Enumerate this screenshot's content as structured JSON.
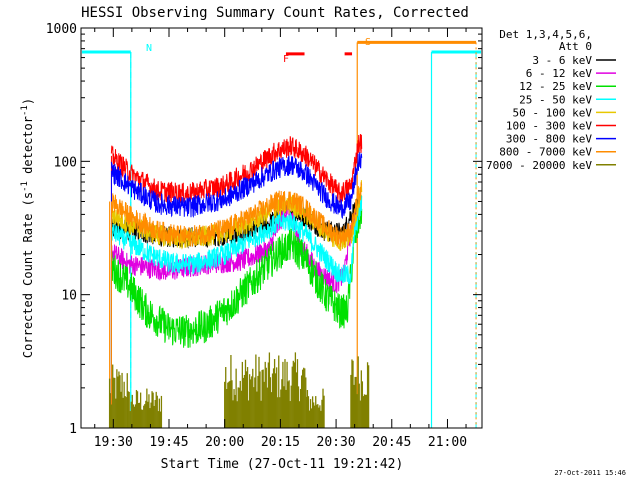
{
  "chart_data": {
    "type": "line",
    "title": "HESSI Observing Summary Count Rates, Corrected",
    "xlabel": "Start Time (27-Oct-11 19:21:42)",
    "ylabel": "Corrected Count Rate (s",
    "ylabel_sup1": "-1",
    "ylabel_mid": " detector",
    "ylabel_sup2": "-1",
    "ylabel_end": ")",
    "y_scale": "log",
    "ylim": [
      1,
      1000
    ],
    "xlim_minutes": [
      -8.7,
      99.3
    ],
    "x_ticks": [
      {
        "label": "19:30",
        "m": 0
      },
      {
        "label": "19:45",
        "m": 15
      },
      {
        "label": "20:00",
        "m": 30
      },
      {
        "label": "20:15",
        "m": 45
      },
      {
        "label": "20:30",
        "m": 60
      },
      {
        "label": "20:45",
        "m": 75
      },
      {
        "label": "21:00",
        "m": 90
      }
    ],
    "y_ticks": [
      {
        "label": "1",
        "v": 1
      },
      {
        "label": "10",
        "v": 10
      },
      {
        "label": "100",
        "v": 100
      },
      {
        "label": "1000",
        "v": 1000
      }
    ],
    "legend": {
      "header_line1": "Det 1,3,4,5,6,",
      "header_line2": "Att 0",
      "entries": [
        {
          "label": "3 - 6 keV",
          "color": "#000000"
        },
        {
          "label": "6 - 12 keV",
          "color": "#e000e0"
        },
        {
          "label": "12 - 25 keV",
          "color": "#00e000"
        },
        {
          "label": "25 - 50 keV",
          "color": "#00ffff"
        },
        {
          "label": "50 - 100 keV",
          "color": "#e8c800"
        },
        {
          "label": "100 - 300 keV",
          "color": "#ff0000"
        },
        {
          "label": "300 - 800 keV",
          "color": "#0000ff"
        },
        {
          "label": "800 - 7000 keV",
          "color": "#ff8c00"
        },
        {
          "label": "7000 - 20000 keV",
          "color": "#808000"
        }
      ]
    },
    "annotations": {
      "night_label": "N",
      "saa_label": "S",
      "flare_label": "F",
      "night_color": "#00ffff",
      "saa_color": "#ff8c00",
      "flare_color": "#ff0000"
    },
    "series": [
      {
        "name": "3 - 6 keV",
        "color": "#000000",
        "points": [
          [
            -0.5,
            32
          ],
          [
            5,
            30
          ],
          [
            15,
            27
          ],
          [
            25,
            27
          ],
          [
            35,
            29
          ],
          [
            42,
            34
          ],
          [
            47,
            43
          ],
          [
            52,
            38
          ],
          [
            57,
            30
          ],
          [
            62,
            29
          ],
          [
            64,
            40
          ],
          [
            66,
            45
          ]
        ]
      },
      {
        "name": "6 - 12 keV",
        "color": "#e000e0",
        "points": [
          [
            -0.5,
            21
          ],
          [
            4,
            17
          ],
          [
            9,
            16
          ],
          [
            15,
            15
          ],
          [
            20,
            16
          ],
          [
            25,
            17
          ],
          [
            35,
            18
          ],
          [
            42,
            22
          ],
          [
            45,
            36
          ],
          [
            47,
            45
          ],
          [
            50,
            25
          ],
          [
            55,
            15
          ],
          [
            60,
            12
          ],
          [
            62,
            14
          ],
          [
            64,
            30
          ],
          [
            66,
            40
          ]
        ]
      },
      {
        "name": "12 - 25 keV",
        "color": "#00e000",
        "points": [
          [
            -0.5,
            16
          ],
          [
            4,
            12
          ],
          [
            9,
            7.5
          ],
          [
            15,
            5.5
          ],
          [
            20,
            5.3
          ],
          [
            25,
            5.8
          ],
          [
            32,
            8.5
          ],
          [
            38,
            13
          ],
          [
            44,
            20
          ],
          [
            48,
            24
          ],
          [
            52,
            18
          ],
          [
            57,
            10
          ],
          [
            61,
            7.5
          ],
          [
            63,
            7.5
          ],
          [
            65,
            26
          ],
          [
            67,
            45
          ]
        ]
      },
      {
        "name": "25 - 50 keV",
        "color": "#00ffff",
        "points": [
          [
            -0.5,
            30
          ],
          [
            4,
            25
          ],
          [
            10,
            20
          ],
          [
            16,
            17
          ],
          [
            22,
            17
          ],
          [
            30,
            20
          ],
          [
            38,
            27
          ],
          [
            44,
            34
          ],
          [
            48,
            36
          ],
          [
            52,
            28
          ],
          [
            57,
            19
          ],
          [
            61,
            14
          ],
          [
            64,
            14
          ],
          [
            65,
            30
          ],
          [
            67,
            50
          ]
        ]
      },
      {
        "name": "50 - 100 keV",
        "color": "#e8c800",
        "points": [
          [
            -0.5,
            40
          ],
          [
            5,
            33
          ],
          [
            12,
            28
          ],
          [
            20,
            26
          ],
          [
            30,
            29
          ],
          [
            38,
            36
          ],
          [
            44,
            45
          ],
          [
            48,
            48
          ],
          [
            52,
            40
          ],
          [
            57,
            30
          ],
          [
            61,
            25
          ],
          [
            64,
            27
          ],
          [
            66,
            50
          ],
          [
            67,
            65
          ]
        ]
      },
      {
        "name": "100 - 300 keV",
        "color": "#ff0000",
        "points": [
          [
            -0.5,
            110
          ],
          [
            5,
            80
          ],
          [
            12,
            60
          ],
          [
            20,
            57
          ],
          [
            30,
            66
          ],
          [
            38,
            90
          ],
          [
            44,
            120
          ],
          [
            48,
            130
          ],
          [
            52,
            110
          ],
          [
            57,
            75
          ],
          [
            61,
            57
          ],
          [
            64,
            65
          ],
          [
            66,
            135
          ],
          [
            67,
            140
          ]
        ]
      },
      {
        "name": "300 - 800 keV",
        "color": "#0000ff",
        "points": [
          [
            -0.5,
            85
          ],
          [
            5,
            63
          ],
          [
            12,
            48
          ],
          [
            20,
            45
          ],
          [
            30,
            52
          ],
          [
            38,
            70
          ],
          [
            44,
            88
          ],
          [
            48,
            95
          ],
          [
            52,
            80
          ],
          [
            57,
            55
          ],
          [
            61,
            44
          ],
          [
            64,
            50
          ],
          [
            66,
            100
          ],
          [
            67,
            95
          ]
        ]
      },
      {
        "name": "800 - 7000 keV",
        "color": "#ff8c00",
        "points": [
          [
            -0.5,
            50
          ],
          [
            5,
            38
          ],
          [
            12,
            30
          ],
          [
            20,
            27
          ],
          [
            30,
            31
          ],
          [
            38,
            40
          ],
          [
            44,
            50
          ],
          [
            48,
            52
          ],
          [
            52,
            44
          ],
          [
            57,
            32
          ],
          [
            61,
            27
          ],
          [
            64,
            30
          ],
          [
            66,
            55
          ],
          [
            67,
            60
          ]
        ]
      }
    ],
    "background_series": {
      "name": "7000 - 20000 keV",
      "color": "#808000",
      "segments": [
        {
          "from": -1,
          "to": 4,
          "low": 1,
          "high": 3
        },
        {
          "from": 4,
          "to": 13,
          "low": 1,
          "high": 2
        },
        {
          "from": 30,
          "to": 52,
          "low": 1,
          "high": 3.7
        },
        {
          "from": 52,
          "to": 57,
          "low": 1,
          "high": 2
        },
        {
          "from": 64,
          "to": 69,
          "low": 1,
          "high": 3.8
        }
      ]
    },
    "markers": {
      "night_bars": [
        [
          -8.7,
          4.7
        ],
        [
          85.7,
          99.3
        ]
      ],
      "night_level": 660,
      "night_edges": [
        4.7,
        85.7
      ],
      "night_dashed": [
        4.7,
        97.7
      ],
      "saa_bar": [
        65.7,
        97.7
      ],
      "saa_level": 780,
      "saa_edges": [
        65.7
      ],
      "flare_bars": [
        [
          46.5,
          51.5
        ],
        [
          62.3,
          64.3
        ]
      ],
      "flare_level": 640
    },
    "grid": false
  },
  "footer": {
    "date_stamp": "27-Oct-2011 15:46"
  }
}
